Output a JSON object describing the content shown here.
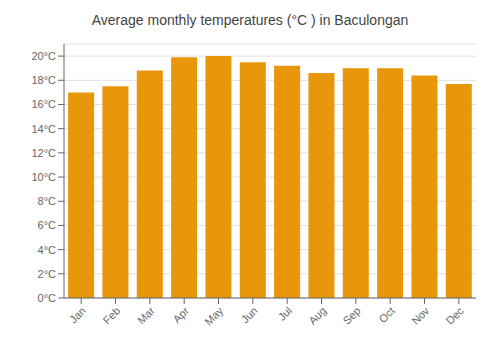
{
  "chart_data": {
    "type": "bar",
    "title": "Average monthly temperatures (°C ) in Baculongan",
    "categories": [
      "Jan",
      "Feb",
      "Mar",
      "Apr",
      "May",
      "Jun",
      "Jul",
      "Aug",
      "Sep",
      "Oct",
      "Nov",
      "Dec"
    ],
    "values": [
      17.0,
      17.5,
      18.8,
      19.9,
      20.0,
      19.5,
      19.2,
      18.6,
      19.0,
      19.0,
      18.4,
      17.7
    ],
    "color": "#E8960A",
    "ylim": [
      0,
      21
    ],
    "yticks": [
      {
        "value": 0,
        "label": "0°C"
      },
      {
        "value": 2,
        "label": "2°C"
      },
      {
        "value": 4,
        "label": "4°C"
      },
      {
        "value": 6,
        "label": "6°C"
      },
      {
        "value": 8,
        "label": "8°C"
      },
      {
        "value": 10,
        "label": "10°C"
      },
      {
        "value": 12,
        "label": "12°C"
      },
      {
        "value": 14,
        "label": "14°C"
      },
      {
        "value": 16,
        "label": "16°C"
      },
      {
        "value": 18,
        "label": "18°C"
      },
      {
        "value": 20,
        "label": "20°C"
      }
    ],
    "grid": true
  }
}
